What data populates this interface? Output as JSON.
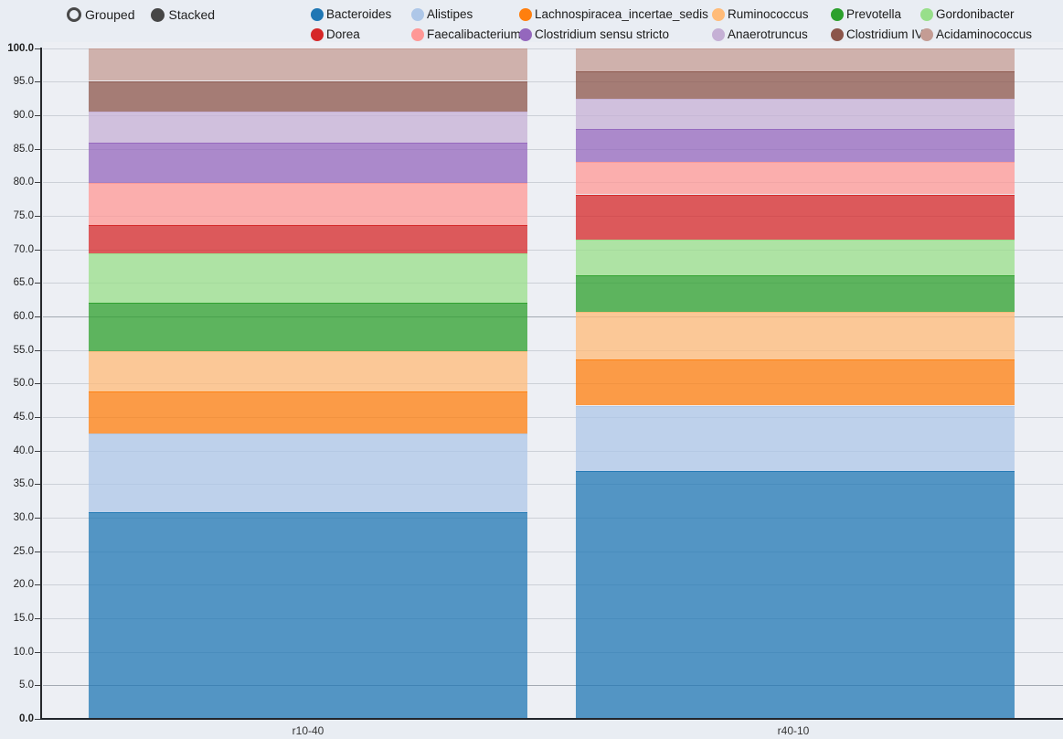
{
  "controls": {
    "mode_options": [
      {
        "label": "Grouped",
        "selected": false
      },
      {
        "label": "Stacked",
        "selected": true
      }
    ]
  },
  "chart_data": {
    "type": "bar",
    "mode": "stacked",
    "title": "",
    "xlabel": "",
    "ylabel": "",
    "categories": [
      "r10-40",
      "r40-10"
    ],
    "series": [
      {
        "name": "Bacteroides",
        "color": "#1f77b4",
        "values": [
          30.8,
          37.0
        ]
      },
      {
        "name": "Alistipes",
        "color": "#aec7e8",
        "values": [
          11.8,
          9.7
        ]
      },
      {
        "name": "Lachnospiracea_incertae_sedis",
        "color": "#ff7f0e",
        "values": [
          6.2,
          6.9
        ]
      },
      {
        "name": "Ruminococcus",
        "color": "#ffbb78",
        "values": [
          6.0,
          7.1
        ]
      },
      {
        "name": "Prevotella",
        "color": "#2ca02c",
        "values": [
          7.3,
          5.4
        ]
      },
      {
        "name": "Gordonibacter",
        "color": "#98df8a",
        "values": [
          7.3,
          5.4
        ]
      },
      {
        "name": "Dorea",
        "color": "#d62728",
        "values": [
          4.2,
          6.7
        ]
      },
      {
        "name": "Faecalibacterium",
        "color": "#ff9896",
        "values": [
          6.3,
          4.8
        ]
      },
      {
        "name": "Clostridium sensu stricto",
        "color": "#9467bd",
        "values": [
          6.0,
          5.0
        ]
      },
      {
        "name": "Anaerotruncus",
        "color": "#c5b0d5",
        "values": [
          4.7,
          4.5
        ]
      },
      {
        "name": "Clostridium IV",
        "color": "#8c564b",
        "values": [
          4.5,
          4.0
        ]
      },
      {
        "name": "Acidaminococcus",
        "color": "#c49c94",
        "values": [
          4.9,
          3.5
        ]
      }
    ],
    "ylim": [
      0,
      100
    ],
    "ytick_step": 5,
    "ytick_label_decimals": 1,
    "grid": true,
    "emphasized_gridlines": [
      5,
      60
    ],
    "legend_position": "top",
    "bar_fill_alpha": 0.75
  }
}
